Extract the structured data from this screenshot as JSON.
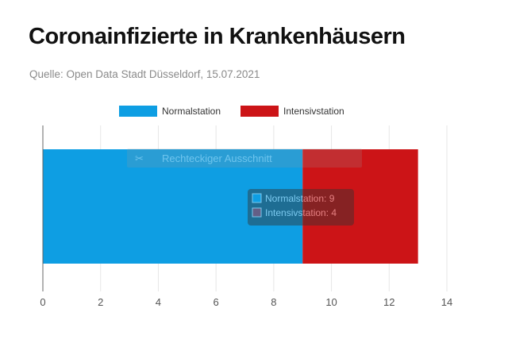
{
  "header": {
    "title": "Coronainfizierte in Krankenhäusern",
    "source": "Quelle: Open Data Stadt Düsseldorf, 15.07.2021"
  },
  "chart_data": {
    "type": "bar",
    "orientation": "horizontal",
    "stacked": true,
    "title": "Coronainfizierte in Krankenhäusern",
    "subtitle": "Quelle: Open Data Stadt Düsseldorf, 15.07.2021",
    "xlabel": "",
    "ylabel": "",
    "categories": [
      ""
    ],
    "series": [
      {
        "name": "Normalstation",
        "values": [
          9
        ],
        "color": "#0e9ee3"
      },
      {
        "name": "Intensivstation",
        "values": [
          4
        ],
        "color": "#cc1417"
      }
    ],
    "xlim": [
      0,
      14
    ],
    "xticks": [
      0,
      2,
      4,
      6,
      8,
      10,
      12,
      14
    ],
    "grid": true,
    "legend": "top-center"
  },
  "tooltip": {
    "lines": [
      "Normalstation: 9",
      "Intensivstation: 4"
    ]
  },
  "overlay": {
    "label": "Rechteckiger Ausschnitt",
    "icon": "scissors-icon"
  }
}
